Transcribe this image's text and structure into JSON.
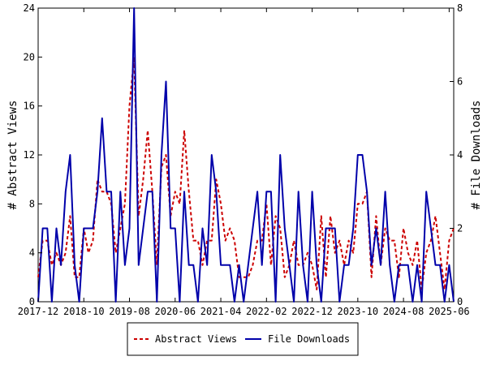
{
  "chart_data": {
    "type": "line",
    "x": [
      "2017-12",
      "2018-01",
      "2018-02",
      "2018-03",
      "2018-04",
      "2018-05",
      "2018-06",
      "2018-07",
      "2018-08",
      "2018-09",
      "2018-10",
      "2018-11",
      "2018-12",
      "2019-01",
      "2019-02",
      "2019-03",
      "2019-04",
      "2019-05",
      "2019-06",
      "2019-07",
      "2019-08",
      "2019-09",
      "2019-10",
      "2019-11",
      "2019-12",
      "2020-01",
      "2020-02",
      "2020-03",
      "2020-04",
      "2020-05",
      "2020-06",
      "2020-07",
      "2020-08",
      "2020-09",
      "2020-10",
      "2020-11",
      "2020-12",
      "2021-01",
      "2021-02",
      "2021-03",
      "2021-04",
      "2021-05",
      "2021-06",
      "2021-07",
      "2021-08",
      "2021-09",
      "2021-10",
      "2021-11",
      "2021-12",
      "2022-01",
      "2022-02",
      "2022-03",
      "2022-04",
      "2022-05",
      "2022-06",
      "2022-07",
      "2022-08",
      "2022-09",
      "2022-10",
      "2022-11",
      "2022-12",
      "2023-01",
      "2023-02",
      "2023-03",
      "2023-04",
      "2023-05",
      "2023-06",
      "2023-07",
      "2023-08",
      "2023-09",
      "2023-10",
      "2023-11",
      "2023-12",
      "2024-01",
      "2024-02",
      "2024-03",
      "2024-04",
      "2024-05",
      "2024-06",
      "2024-07",
      "2024-08",
      "2024-09",
      "2024-10",
      "2024-11",
      "2024-12",
      "2025-01",
      "2025-02",
      "2025-03",
      "2025-04",
      "2025-05",
      "2025-06",
      "2025-07"
    ],
    "series": [
      {
        "name": "Abstract Views",
        "axis": "left",
        "color": "#cc0000",
        "style": "dashed",
        "values": [
          2,
          5,
          5,
          3,
          4,
          3,
          4,
          7,
          2,
          2,
          6,
          4,
          5,
          10,
          9,
          9,
          8,
          4,
          6,
          8,
          16,
          20,
          7,
          10,
          14,
          9,
          3,
          11,
          12,
          7,
          9,
          8,
          14,
          9,
          5,
          5,
          3,
          5,
          5,
          10,
          8,
          5,
          6,
          5,
          2,
          2,
          2,
          3,
          5,
          5,
          8,
          3,
          7,
          6,
          2,
          3,
          5,
          3,
          3,
          4,
          3,
          1,
          7,
          2,
          7,
          4,
          5,
          3,
          5,
          4,
          8,
          8,
          9,
          2,
          7,
          3,
          6,
          5,
          5,
          2,
          6,
          4,
          3,
          5,
          1,
          4,
          5,
          7,
          4,
          1,
          5,
          6
        ]
      },
      {
        "name": "File Downloads",
        "axis": "right",
        "color": "#0000aa",
        "style": "solid",
        "values": [
          0,
          2,
          2,
          0,
          2,
          1,
          3,
          4,
          1,
          0,
          2,
          2,
          2,
          3,
          5,
          3,
          3,
          0,
          3,
          1,
          2,
          8,
          1,
          2,
          3,
          3,
          0,
          4,
          6,
          2,
          2,
          0,
          3,
          1,
          1,
          0,
          2,
          1,
          4,
          3,
          1,
          1,
          1,
          0,
          1,
          0,
          1,
          2,
          3,
          1,
          3,
          3,
          0,
          4,
          2,
          1,
          0,
          3,
          1,
          0,
          3,
          1,
          0,
          2,
          2,
          2,
          0,
          1,
          1,
          2,
          4,
          4,
          3,
          1,
          2,
          1,
          3,
          1,
          0,
          1,
          1,
          1,
          0,
          1,
          0,
          3,
          2,
          1,
          1,
          0,
          1,
          0
        ]
      }
    ],
    "x_tick_labels": [
      "2017-12",
      "2018-10",
      "2019-08",
      "2020-06",
      "2021-04",
      "2022-02",
      "2022-12",
      "2023-10",
      "2024-08",
      "2025-06"
    ],
    "ylabel": "# Abstract Views",
    "y2label": "# File Downloads",
    "ylim": [
      0,
      24
    ],
    "y_ticks": [
      "0",
      "4",
      "8",
      "12",
      "16",
      "20",
      "24"
    ],
    "y2lim": [
      0,
      8
    ],
    "y2_ticks": [
      "0",
      "2",
      "4",
      "6",
      "8"
    ],
    "grid": false,
    "legend_position": "bottom-center"
  }
}
